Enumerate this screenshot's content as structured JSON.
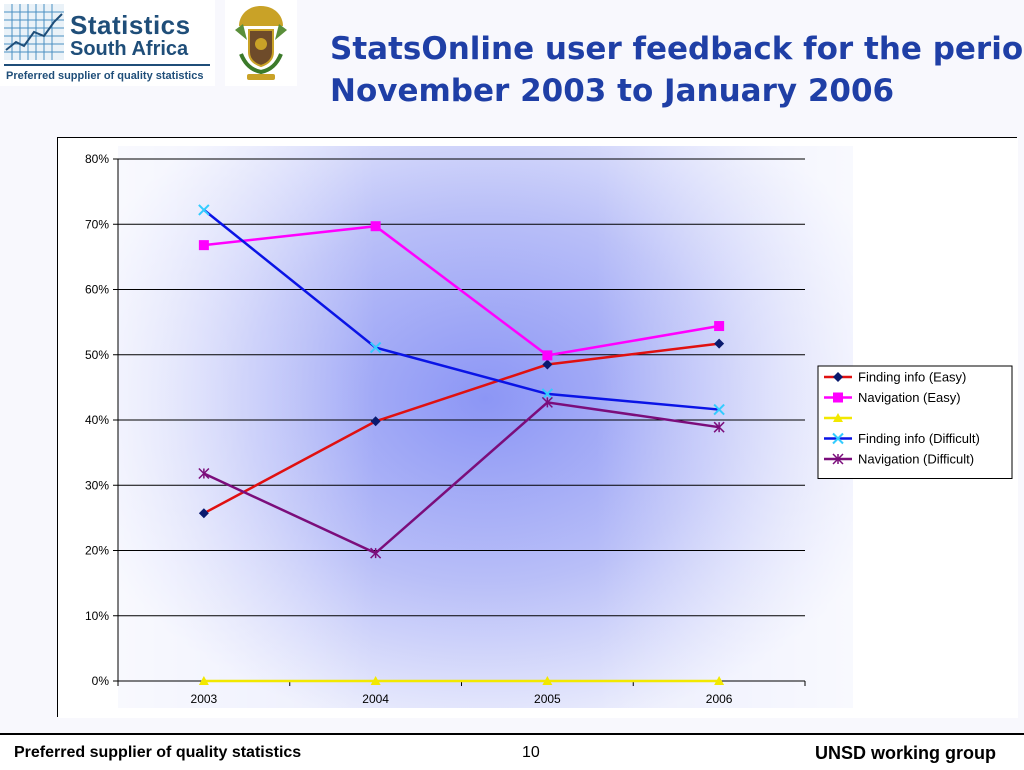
{
  "header": {
    "logo_title": "Statistics",
    "logo_subtitle": "South Africa",
    "logo_tagline": "Preferred supplier of quality statistics",
    "title_line1": "StatsOnline user feedback for the period",
    "title_line2": "November 2003 to January 2006",
    "title_color": "#1f3fa6"
  },
  "chart_data": {
    "type": "line",
    "title": "",
    "xlabel": "",
    "ylabel": "",
    "categories": [
      "2003",
      "2004",
      "2005",
      "2006"
    ],
    "y_ticks": [
      "0%",
      "10%",
      "20%",
      "30%",
      "40%",
      "50%",
      "60%",
      "70%",
      "80%"
    ],
    "ylim": [
      0,
      0.8
    ],
    "grid": true,
    "legend_position": "right",
    "series": [
      {
        "name": "Finding info (Easy)",
        "values": [
          0.257,
          0.398,
          0.485,
          0.517
        ],
        "color": "#e01010",
        "marker_color": "#0a1a6e",
        "marker": "diamond"
      },
      {
        "name": "Navigation (Easy)",
        "values": [
          0.668,
          0.697,
          0.499,
          0.544
        ],
        "color": "#ff00ff",
        "marker_color": "#ff00ff",
        "marker": "square"
      },
      {
        "name": "",
        "values": [
          0,
          0,
          0,
          0
        ],
        "color": "#f2e800",
        "marker_color": "#f2e800",
        "marker": "triangle"
      },
      {
        "name": "Finding info (Difficult)",
        "values": [
          0.722,
          0.511,
          0.44,
          0.416
        ],
        "color": "#0a14e6",
        "marker_color": "#33ccff",
        "marker": "x"
      },
      {
        "name": "Navigation (Difficult)",
        "values": [
          0.318,
          0.196,
          0.427,
          0.389
        ],
        "color": "#7b0d7b",
        "marker_color": "#7b0d7b",
        "marker": "star"
      }
    ]
  },
  "footer": {
    "left": "Preferred supplier of quality statistics",
    "page": "10",
    "right": "UNSD working group"
  }
}
